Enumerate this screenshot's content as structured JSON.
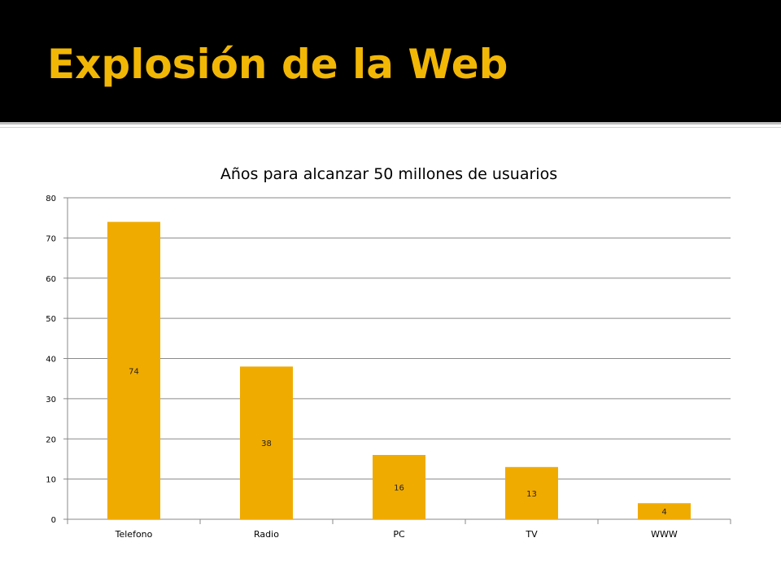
{
  "slide": {
    "title": "Explosión de la Web",
    "accent_color": "#f2b705",
    "band_color": "#000000"
  },
  "chart_data": {
    "type": "bar",
    "title": "Años para alcanzar 50 millones de usuarios",
    "categories": [
      "Telefono",
      "Radio",
      "PC",
      "TV",
      "WWW"
    ],
    "values": [
      74,
      38,
      16,
      13,
      4
    ],
    "data_labels": [
      "74",
      "38",
      "16",
      "13",
      "4"
    ],
    "xlabel": "",
    "ylabel": "",
    "ylim": [
      0,
      80
    ],
    "yticks": [
      0,
      10,
      20,
      30,
      40,
      50,
      60,
      70,
      80
    ],
    "ytick_labels": [
      "0",
      "10",
      "20",
      "30",
      "40",
      "50",
      "60",
      "70",
      "80"
    ],
    "grid": true,
    "bar_color": "#f0ab00"
  }
}
